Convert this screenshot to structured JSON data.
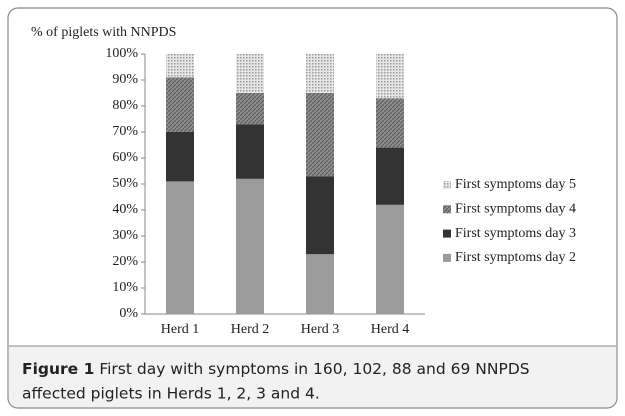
{
  "chart_data": {
    "type": "stacked_bar",
    "ylabel": "% of piglets with NNPDS",
    "categories": [
      "Herd 1",
      "Herd 2",
      "Herd 3",
      "Herd 4"
    ],
    "series": [
      {
        "name": "First symptoms day 2",
        "color": "#9b9b9b",
        "values": [
          51,
          52,
          23,
          42
        ]
      },
      {
        "name": "First symptoms day 3",
        "color": "#333333",
        "values": [
          19,
          21,
          30,
          22
        ]
      },
      {
        "name": "First symptoms day 4",
        "color": "#8c8c8c",
        "values": [
          21,
          12,
          32,
          19
        ]
      },
      {
        "name": "First symptoms day 5",
        "color": "#d4d4d4",
        "values": [
          9,
          15,
          15,
          17
        ]
      }
    ],
    "ylim": [
      0,
      100
    ],
    "yticks": [
      {
        "value": 0,
        "label": "0%"
      },
      {
        "value": 10,
        "label": "10%"
      },
      {
        "value": 20,
        "label": "20%"
      },
      {
        "value": 30,
        "label": "30%"
      },
      {
        "value": 40,
        "label": "40%"
      },
      {
        "value": 50,
        "label": "50%"
      },
      {
        "value": 60,
        "label": "60%"
      },
      {
        "value": 70,
        "label": "70%"
      },
      {
        "value": 80,
        "label": "80%"
      },
      {
        "value": 90,
        "label": "90%"
      },
      {
        "value": 100,
        "label": "100%"
      }
    ],
    "legend": "right"
  },
  "caption": {
    "label": "Figure 1",
    "text": "First day with symptoms in 160, 102, 88 and 69 NNPDS",
    "text2": "affected piglets in Herds 1, 2, 3 and 4."
  }
}
